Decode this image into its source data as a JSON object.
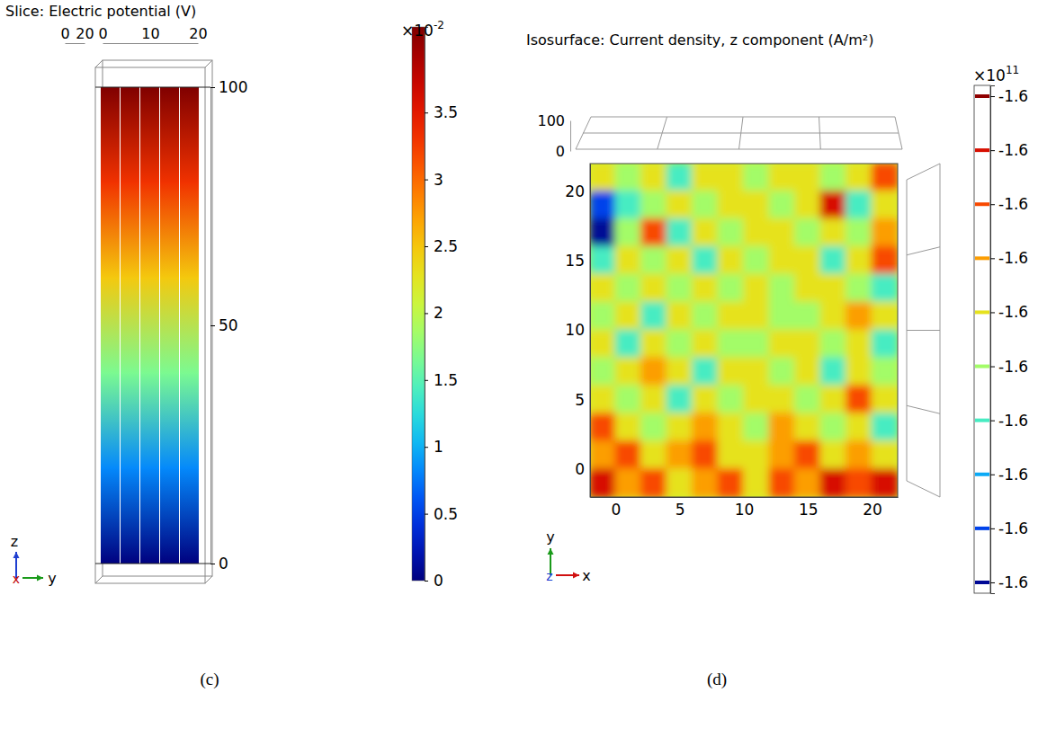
{
  "chart_data": [
    {
      "type": "slice",
      "title": "Slice: Electric potential (V)",
      "caption": "(c)",
      "xlim": [
        0,
        20
      ],
      "xticks": [
        0,
        20
      ],
      "ylim": [
        0,
        20
      ],
      "yticks": [
        0,
        10,
        20
      ],
      "zlim": [
        0,
        100
      ],
      "zticks": [
        0,
        50,
        100
      ],
      "triad": {
        "x": "x",
        "y": "y",
        "z": "z"
      },
      "z": [
        0,
        20,
        40,
        60,
        80,
        100
      ],
      "values": [
        0,
        0.83,
        1.66,
        2.48,
        3.31,
        4.14
      ],
      "colorbar": {
        "range": [
          0,
          4.14
        ],
        "ticks": [
          0,
          0.5,
          1,
          1.5,
          2,
          2.5,
          3,
          3.5
        ],
        "multiplier": {
          "base": "×10",
          "exponent": "-2"
        }
      }
    },
    {
      "type": "isosurface",
      "title": "Isosurface: Current density, z component (A/m²)",
      "caption": "(d)",
      "xlim": [
        -2,
        22
      ],
      "xticks": [
        0,
        5,
        10,
        15,
        20
      ],
      "ylim": [
        -2,
        22
      ],
      "yticks": [
        0,
        5,
        10,
        15,
        20
      ],
      "zlim": [
        0,
        100
      ],
      "zticks": [
        0,
        100
      ],
      "triad": {
        "x": "x",
        "y": "y",
        "z": "z"
      },
      "cell_x": [
        -1,
        1,
        3,
        5,
        7,
        9,
        11,
        13,
        15,
        17,
        19,
        21
      ],
      "cell_y": [
        21,
        19,
        17,
        15,
        13,
        11,
        9,
        7,
        5,
        3,
        1,
        -1
      ],
      "cells": [
        [
          -1.5995,
          -1.6005,
          -1.5995,
          -1.6015,
          -1.5995,
          -1.5995,
          -1.6005,
          -1.5995,
          -1.5995,
          -1.6005,
          -1.5995,
          -1.5975
        ],
        [
          -1.6035,
          -1.6015,
          -1.6005,
          -1.5995,
          -1.6005,
          -1.5995,
          -1.5995,
          -1.6005,
          -1.5995,
          -1.5965,
          -1.6015,
          -1.5995
        ],
        [
          -1.6045,
          -1.6005,
          -1.5975,
          -1.6015,
          -1.5995,
          -1.6005,
          -1.5995,
          -1.5995,
          -1.6005,
          -1.5995,
          -1.6005,
          -1.5985
        ],
        [
          -1.6015,
          -1.5995,
          -1.6005,
          -1.5995,
          -1.6015,
          -1.5995,
          -1.6005,
          -1.5995,
          -1.5995,
          -1.6015,
          -1.5995,
          -1.5975
        ],
        [
          -1.5995,
          -1.6005,
          -1.5995,
          -1.6005,
          -1.5995,
          -1.6005,
          -1.5995,
          -1.6005,
          -1.5995,
          -1.5995,
          -1.6005,
          -1.6015
        ],
        [
          -1.6005,
          -1.5995,
          -1.6015,
          -1.5995,
          -1.6005,
          -1.5995,
          -1.5995,
          -1.6005,
          -1.6005,
          -1.5995,
          -1.5985,
          -1.5995
        ],
        [
          -1.5995,
          -1.6015,
          -1.5995,
          -1.6005,
          -1.5995,
          -1.6005,
          -1.6005,
          -1.5995,
          -1.5995,
          -1.6005,
          -1.5995,
          -1.6015
        ],
        [
          -1.6005,
          -1.5995,
          -1.5985,
          -1.5995,
          -1.6015,
          -1.5995,
          -1.5995,
          -1.6005,
          -1.5995,
          -1.6015,
          -1.5995,
          -1.6005
        ],
        [
          -1.5995,
          -1.6005,
          -1.5995,
          -1.6015,
          -1.5995,
          -1.6005,
          -1.5995,
          -1.5995,
          -1.6005,
          -1.5995,
          -1.5975,
          -1.5995
        ],
        [
          -1.5975,
          -1.5995,
          -1.6005,
          -1.5995,
          -1.5985,
          -1.5995,
          -1.6005,
          -1.5985,
          -1.5995,
          -1.6005,
          -1.5995,
          -1.6015
        ],
        [
          -1.5985,
          -1.5975,
          -1.5995,
          -1.5985,
          -1.5975,
          -1.5995,
          -1.5995,
          -1.5985,
          -1.5975,
          -1.5995,
          -1.5985,
          -1.5995
        ],
        [
          -1.5965,
          -1.5985,
          -1.5975,
          -1.5995,
          -1.5985,
          -1.5975,
          -1.5995,
          -1.5975,
          -1.5985,
          -1.5965,
          -1.5975,
          -1.5965
        ]
      ],
      "colorbar": {
        "range": [
          -1.6047,
          -1.5953
        ],
        "ticks": [
          {
            "value": -1.6045,
            "label": "-1.6"
          },
          {
            "value": -1.6035,
            "label": "-1.6"
          },
          {
            "value": -1.6025,
            "label": "-1.6"
          },
          {
            "value": -1.6015,
            "label": "-1.6"
          },
          {
            "value": -1.6005,
            "label": "-1.6"
          },
          {
            "value": -1.5995,
            "label": "-1.6"
          },
          {
            "value": -1.5985,
            "label": "-1.6"
          },
          {
            "value": -1.5975,
            "label": "-1.6"
          },
          {
            "value": -1.5965,
            "label": "-1.6"
          },
          {
            "value": -1.5955,
            "label": "-1.6"
          }
        ],
        "multiplier": {
          "base": "×10",
          "exponent": "11"
        }
      }
    }
  ]
}
